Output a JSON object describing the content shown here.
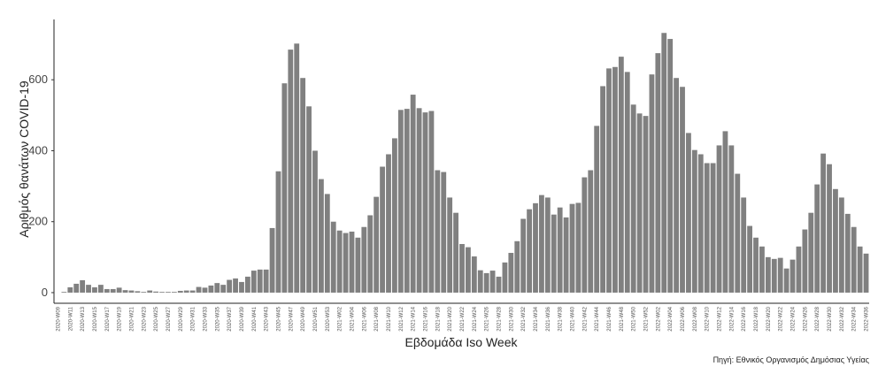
{
  "chart_data": {
    "type": "bar",
    "y_label": "Αριθμός θανάτων COVID-19",
    "x_label": "Εβδομάδα Iso Week",
    "source": "Πηγή: Εθνικός Οργανισμός Δημόσιας Υγείας",
    "color": "#808080",
    "ylim": [
      -30,
      770
    ],
    "yticks": [
      0,
      200,
      400,
      600
    ],
    "grid": false,
    "categories": [
      "2020-W09",
      null,
      "2020-W11",
      null,
      "2020-W13",
      null,
      "2020-W15",
      null,
      "2020-W17",
      null,
      "2020-W19",
      null,
      "2020-W21",
      null,
      "2020-W23",
      null,
      "2020-W25",
      null,
      "2020-W27",
      null,
      "2020-W29",
      null,
      "2020-W31",
      null,
      "2020-W33",
      null,
      "2020-W35",
      null,
      "2020-W37",
      null,
      "2020-W39",
      null,
      "2020-W41",
      null,
      "2020-W43",
      null,
      "2020-W45",
      null,
      "2020-W47",
      null,
      "2020-W49",
      null,
      "2020-W51",
      null,
      "2020-W53",
      null,
      "2021-W02",
      null,
      "2021-W04",
      null,
      "2021-W06",
      null,
      "2021-W08",
      null,
      "2021-W10",
      null,
      "2021-W12",
      null,
      "2021-W14",
      null,
      "2021-W16",
      null,
      "2021-W18",
      null,
      "2021-W20",
      null,
      "2021-W22",
      null,
      "2021-W24",
      null,
      "2021-W26",
      null,
      "2021-W28",
      null,
      "2021-W30",
      null,
      "2021-W32",
      null,
      "2021-W34",
      null,
      "2021-W36",
      null,
      "2021-W38",
      null,
      "2021-W40",
      null,
      "2021-W42",
      null,
      "2021-W44",
      null,
      "2021-W46",
      null,
      "2021-W48",
      null,
      "2021-W50",
      null,
      "2021-W52",
      null,
      "2022-W02",
      null,
      "2022-W04",
      null,
      "2022-W06",
      null,
      "2022-W08",
      null,
      "2022-W10",
      null,
      "2022-W12",
      null,
      "2022-W14",
      null,
      "2022-W16",
      null,
      "2022-W18",
      null,
      "2022-W20",
      null,
      "2022-W22",
      null,
      "2022-W24",
      null,
      "2022-W26",
      null,
      "2022-W28",
      null,
      "2022-W30",
      null,
      "2022-W32",
      null,
      "2022-W34",
      null,
      "2022-W36"
    ],
    "values": [
      0,
      2,
      15,
      25,
      35,
      22,
      15,
      22,
      10,
      10,
      14,
      7,
      6,
      4,
      2,
      6,
      3,
      2,
      2,
      2,
      5,
      6,
      6,
      16,
      14,
      20,
      27,
      22,
      36,
      40,
      30,
      45,
      62,
      65,
      65,
      182,
      342,
      590,
      685,
      702,
      605,
      525,
      400,
      320,
      278,
      200,
      175,
      168,
      172,
      155,
      185,
      218,
      270,
      355,
      390,
      435,
      515,
      518,
      558,
      520,
      508,
      512,
      345,
      340,
      268,
      225,
      137,
      128,
      102,
      63,
      55,
      62,
      45,
      85,
      112,
      145,
      208,
      235,
      252,
      275,
      268,
      220,
      240,
      212,
      250,
      253,
      325,
      345,
      470,
      582,
      632,
      636,
      665,
      622,
      530,
      505,
      498,
      615,
      675,
      732,
      715,
      605,
      580,
      450,
      402,
      390,
      365,
      365,
      415,
      455,
      415,
      335,
      268,
      188,
      155,
      130,
      100,
      95,
      98,
      68,
      93,
      130,
      178,
      225,
      305,
      392,
      362,
      292,
      268,
      222,
      185,
      130,
      110
    ]
  }
}
